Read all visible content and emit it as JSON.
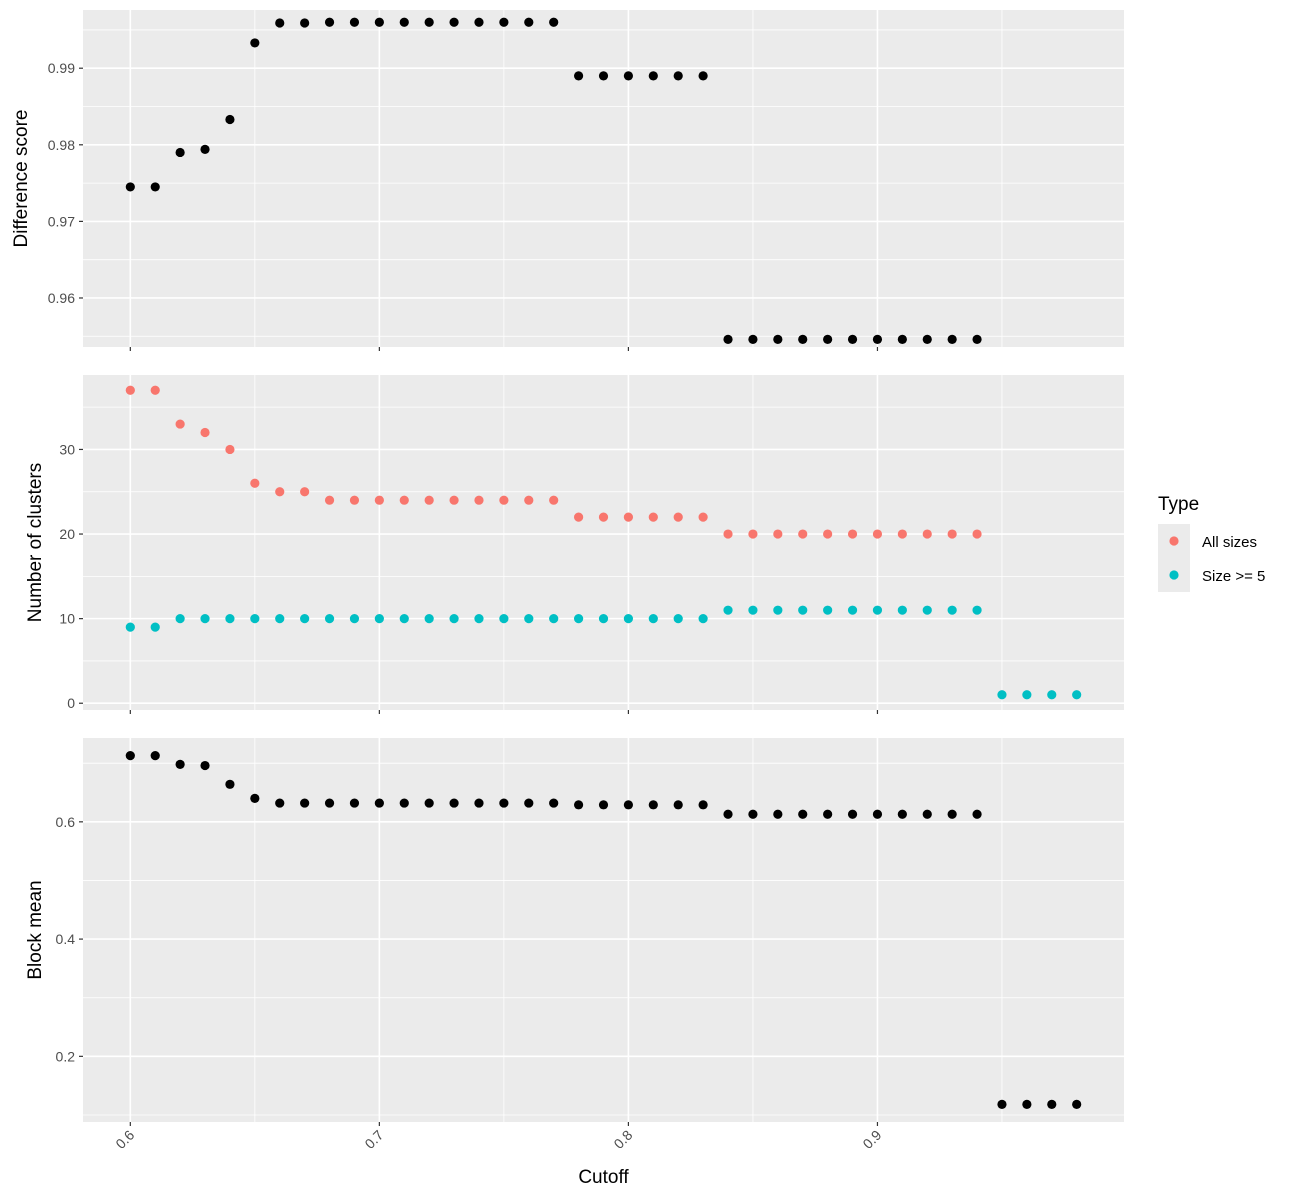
{
  "chart_data": [
    {
      "type": "scatter",
      "ylabel": "Difference score",
      "xlim": [
        0.581,
        0.999
      ],
      "ylim": [
        0.9536,
        0.9976
      ],
      "x_ticks": [
        0.6,
        0.7,
        0.8,
        0.9
      ],
      "y_ticks": [
        0.96,
        0.97,
        0.98,
        0.99
      ],
      "y_tick_labels": [
        "0.96",
        "0.97",
        "0.98",
        "0.99"
      ],
      "series": [
        {
          "color": "#000000",
          "x": [
            0.6,
            0.61,
            0.62,
            0.63,
            0.64,
            0.65,
            0.66,
            0.67,
            0.68,
            0.69,
            0.7,
            0.71,
            0.72,
            0.73,
            0.74,
            0.75,
            0.76,
            0.77,
            0.78,
            0.79,
            0.8,
            0.81,
            0.82,
            0.83,
            0.84,
            0.85,
            0.86,
            0.87,
            0.88,
            0.89,
            0.9,
            0.91,
            0.92,
            0.93,
            0.94
          ],
          "y": [
            0.9745,
            0.9745,
            0.979,
            0.9794,
            0.9833,
            0.9933,
            0.9959,
            0.9959,
            0.996,
            0.996,
            0.996,
            0.996,
            0.996,
            0.996,
            0.996,
            0.996,
            0.996,
            0.996,
            0.989,
            0.989,
            0.989,
            0.989,
            0.989,
            0.989,
            0.9546,
            0.9546,
            0.9546,
            0.9546,
            0.9546,
            0.9546,
            0.9546,
            0.9546,
            0.9546,
            0.9546,
            0.9546
          ]
        }
      ]
    },
    {
      "type": "scatter",
      "ylabel": "Number of clusters",
      "xlim": [
        0.581,
        0.999
      ],
      "ylim": [
        -0.8,
        38.8
      ],
      "x_ticks": [
        0.6,
        0.7,
        0.8,
        0.9
      ],
      "y_ticks": [
        0,
        10,
        20,
        30
      ],
      "y_tick_labels": [
        "0",
        "10",
        "20",
        "30"
      ],
      "legend": {
        "title": "Type",
        "placement": "right",
        "entries": [
          {
            "label": "All sizes",
            "color": "#F8766D"
          },
          {
            "label": "Size >= 5",
            "color": "#00BFC4"
          }
        ]
      },
      "series": [
        {
          "name": "All sizes",
          "color": "#F8766D",
          "x": [
            0.6,
            0.61,
            0.62,
            0.63,
            0.64,
            0.65,
            0.66,
            0.67,
            0.68,
            0.69,
            0.7,
            0.71,
            0.72,
            0.73,
            0.74,
            0.75,
            0.76,
            0.77,
            0.78,
            0.79,
            0.8,
            0.81,
            0.82,
            0.83,
            0.84,
            0.85,
            0.86,
            0.87,
            0.88,
            0.89,
            0.9,
            0.91,
            0.92,
            0.93,
            0.94
          ],
          "y": [
            37,
            37,
            33,
            32,
            30,
            26,
            25,
            25,
            24,
            24,
            24,
            24,
            24,
            24,
            24,
            24,
            24,
            24,
            22,
            22,
            22,
            22,
            22,
            22,
            20,
            20,
            20,
            20,
            20,
            20,
            20,
            20,
            20,
            20,
            20
          ]
        },
        {
          "name": "Size >= 5",
          "color": "#00BFC4",
          "x": [
            0.6,
            0.61,
            0.62,
            0.63,
            0.64,
            0.65,
            0.66,
            0.67,
            0.68,
            0.69,
            0.7,
            0.71,
            0.72,
            0.73,
            0.74,
            0.75,
            0.76,
            0.77,
            0.78,
            0.79,
            0.8,
            0.81,
            0.82,
            0.83,
            0.84,
            0.85,
            0.86,
            0.87,
            0.88,
            0.89,
            0.9,
            0.91,
            0.92,
            0.93,
            0.94,
            0.95,
            0.96,
            0.97,
            0.98
          ],
          "y": [
            9,
            9,
            10,
            10,
            10,
            10,
            10,
            10,
            10,
            10,
            10,
            10,
            10,
            10,
            10,
            10,
            10,
            10,
            10,
            10,
            10,
            10,
            10,
            10,
            11,
            11,
            11,
            11,
            11,
            11,
            11,
            11,
            11,
            11,
            11,
            1,
            1,
            1,
            1
          ]
        }
      ]
    },
    {
      "type": "scatter",
      "ylabel": "Block mean",
      "xlabel": "Cutoff",
      "xlim": [
        0.581,
        0.999
      ],
      "ylim": [
        0.088,
        0.743
      ],
      "x_ticks": [
        0.6,
        0.7,
        0.8,
        0.9
      ],
      "x_tick_labels": [
        "0.6",
        "0.7",
        "0.8",
        "0.9"
      ],
      "y_ticks": [
        0.2,
        0.4,
        0.6
      ],
      "y_tick_labels": [
        "0.2",
        "0.4",
        "0.6"
      ],
      "series": [
        {
          "color": "#000000",
          "x": [
            0.6,
            0.61,
            0.62,
            0.63,
            0.64,
            0.65,
            0.66,
            0.67,
            0.68,
            0.69,
            0.7,
            0.71,
            0.72,
            0.73,
            0.74,
            0.75,
            0.76,
            0.77,
            0.78,
            0.79,
            0.8,
            0.81,
            0.82,
            0.83,
            0.84,
            0.85,
            0.86,
            0.87,
            0.88,
            0.89,
            0.9,
            0.91,
            0.92,
            0.93,
            0.94,
            0.95,
            0.96,
            0.97,
            0.98
          ],
          "y": [
            0.713,
            0.713,
            0.698,
            0.696,
            0.664,
            0.64,
            0.632,
            0.632,
            0.632,
            0.632,
            0.632,
            0.632,
            0.632,
            0.632,
            0.632,
            0.632,
            0.632,
            0.632,
            0.629,
            0.629,
            0.629,
            0.629,
            0.629,
            0.629,
            0.613,
            0.613,
            0.613,
            0.613,
            0.613,
            0.613,
            0.613,
            0.613,
            0.613,
            0.613,
            0.613,
            0.118,
            0.118,
            0.118,
            0.118
          ]
        }
      ]
    }
  ]
}
